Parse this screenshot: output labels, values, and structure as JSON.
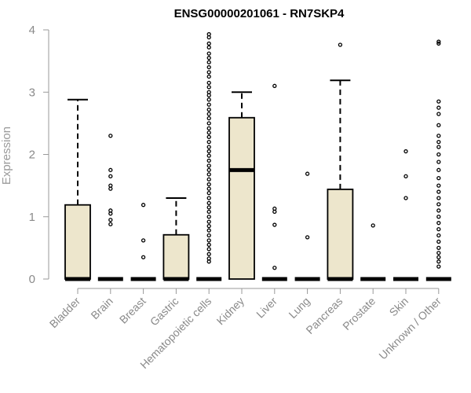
{
  "chart_data": {
    "type": "boxplot",
    "title": "ENSG00000201061 - RN7SKP4",
    "xlabel": "",
    "ylabel": "Expression",
    "ylim": [
      0,
      4
    ],
    "yticks": [
      0,
      1,
      2,
      3,
      4
    ],
    "grid": false,
    "legend": "none",
    "box_fill": "#ede6cc",
    "categories": [
      "Bladder",
      "Brain",
      "Breast",
      "Gastric",
      "Hematopoietic cells",
      "Kidney",
      "Liver",
      "Lung",
      "Pancreas",
      "Prostate",
      "Skin",
      "Unknown / Other"
    ],
    "boxes": [
      {
        "category": "Bladder",
        "min": 0,
        "q1": 0,
        "median": 0,
        "q3": 1.19,
        "max": 2.88,
        "outliers": []
      },
      {
        "category": "Brain",
        "min": 0,
        "q1": 0,
        "median": 0,
        "q3": 0,
        "max": 0,
        "outliers": [
          2.3,
          1.75,
          1.65,
          1.5,
          1.45,
          1.1,
          1.05,
          0.95,
          0.88
        ]
      },
      {
        "category": "Breast",
        "min": 0,
        "q1": 0,
        "median": 0,
        "q3": 0,
        "max": 0,
        "outliers": [
          1.19,
          0.62,
          0.35
        ]
      },
      {
        "category": "Gastric",
        "min": 0,
        "q1": 0,
        "median": 0,
        "q3": 0.71,
        "max": 1.3,
        "outliers": []
      },
      {
        "category": "Hematopoietic cells",
        "min": 0,
        "q1": 0,
        "median": 0,
        "q3": 0,
        "max": 0,
        "outliers": [
          3.93,
          3.88,
          3.78,
          3.72,
          3.62,
          3.55,
          3.48,
          3.4,
          3.32,
          3.25,
          3.15,
          3.08,
          3.0,
          2.95,
          2.88,
          2.8,
          2.72,
          2.65,
          2.58,
          2.5,
          2.42,
          2.35,
          2.28,
          2.2,
          2.12,
          2.05,
          1.98,
          1.9,
          1.82,
          1.75,
          1.68,
          1.6,
          1.52,
          1.45,
          1.38,
          1.3,
          1.22,
          1.15,
          1.08,
          1.0,
          0.92,
          0.85,
          0.78,
          0.7,
          0.62,
          0.55,
          0.48,
          0.4,
          0.33,
          0.28
        ]
      },
      {
        "category": "Kidney",
        "min": 0,
        "q1": 0,
        "median": 1.75,
        "q3": 2.59,
        "max": 3.0,
        "outliers": []
      },
      {
        "category": "Liver",
        "min": 0,
        "q1": 0,
        "median": 0,
        "q3": 0,
        "max": 0,
        "outliers": [
          3.1,
          1.13,
          1.08,
          0.87,
          0.18
        ]
      },
      {
        "category": "Lung",
        "min": 0,
        "q1": 0,
        "median": 0,
        "q3": 0,
        "max": 0,
        "outliers": [
          1.69,
          0.67
        ]
      },
      {
        "category": "Pancreas",
        "min": 0,
        "q1": 0,
        "median": 0,
        "q3": 1.44,
        "max": 3.19,
        "outliers": [
          3.76
        ]
      },
      {
        "category": "Prostate",
        "min": 0,
        "q1": 0,
        "median": 0,
        "q3": 0,
        "max": 0,
        "outliers": [
          0.86
        ]
      },
      {
        "category": "Skin",
        "min": 0,
        "q1": 0,
        "median": 0,
        "q3": 0,
        "max": 0,
        "outliers": [
          2.05,
          1.65,
          1.3
        ]
      },
      {
        "category": "Unknown / Other",
        "min": 0,
        "q1": 0,
        "median": 0,
        "q3": 0,
        "max": 0,
        "outliers": [
          3.81,
          3.78,
          2.85,
          2.75,
          2.65,
          2.47,
          2.3,
          2.2,
          2.12,
          2.0,
          1.88,
          1.75,
          1.62,
          1.5,
          1.4,
          1.3,
          1.2,
          1.1,
          1.0,
          0.9,
          0.8,
          0.7,
          0.6,
          0.5,
          0.42,
          0.35,
          0.28,
          0.2
        ]
      }
    ]
  }
}
